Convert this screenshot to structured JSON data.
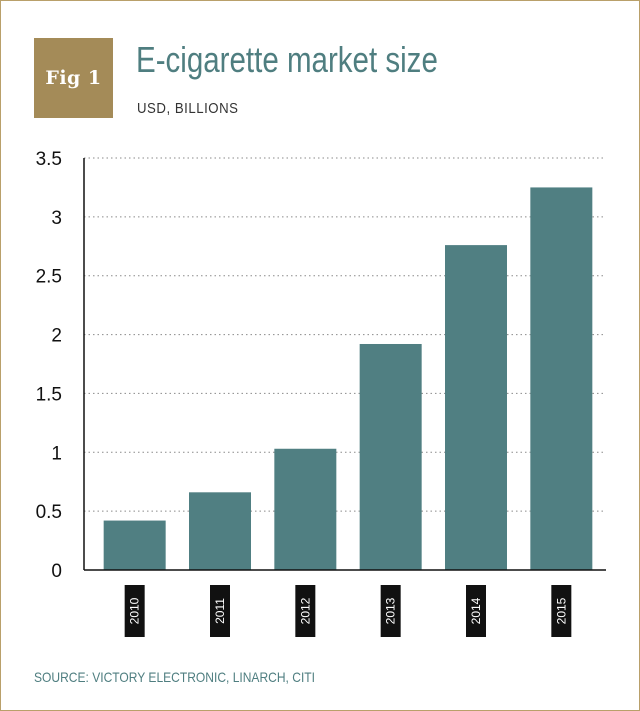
{
  "header": {
    "badge": "Fig 1",
    "title": "E-cigarette market size",
    "subtitle": "USD, BILLIONS"
  },
  "footer": {
    "source": "SOURCE: VICTORY ELECTRONIC, LINARCH, CITI"
  },
  "colors": {
    "bar": "#507f82",
    "accent": "#a48b58",
    "title": "#4f7e80",
    "label_bg": "#111111"
  },
  "chart_data": {
    "type": "bar",
    "title": "E-cigarette market size",
    "subtitle": "USD, BILLIONS",
    "xlabel": "",
    "ylabel": "",
    "categories": [
      "2010",
      "2011",
      "2012",
      "2013",
      "2014",
      "2015"
    ],
    "values": [
      0.42,
      0.66,
      1.03,
      1.92,
      2.76,
      3.25
    ],
    "ylim": [
      0,
      3.5
    ],
    "yticks": [
      "0",
      "0.5",
      "1",
      "1.5",
      "2",
      "2.5",
      "3",
      "3.5"
    ],
    "ytick_values": [
      0,
      0.5,
      1,
      1.5,
      2,
      2.5,
      3,
      3.5
    ],
    "grid": true,
    "legend": "none"
  }
}
